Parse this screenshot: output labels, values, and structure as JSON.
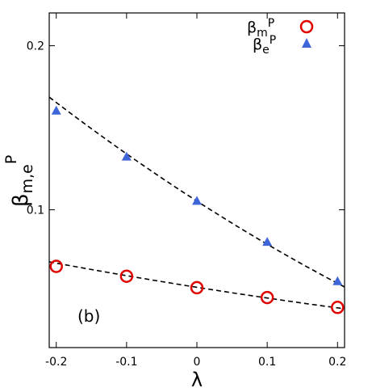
{
  "chart_data": {
    "type": "scatter",
    "xlabel": "λ",
    "ylabel_main": "β",
    "ylabel_sub": "m,e",
    "ylabel_sup": "P",
    "xlim": [
      -0.21,
      0.21
    ],
    "ylim": [
      0.016,
      0.22
    ],
    "xticks": [
      -0.2,
      -0.1,
      0,
      0.1,
      0.2
    ],
    "xtick_labels": [
      "-0.2",
      "-0.1",
      "0",
      "0.1",
      "0.2"
    ],
    "yticks": [
      0.1,
      0.2
    ],
    "ytick_labels": [
      "0.1",
      "0.2"
    ],
    "annotation": "(b)",
    "legend_position": "top-right",
    "series": [
      {
        "legend_main": "β",
        "legend_sub": "m",
        "legend_sup": "P",
        "marker": "circle",
        "color": "#e00000",
        "x": [
          -0.2,
          -0.1,
          0,
          0.1,
          0.2
        ],
        "y": [
          0.0655,
          0.0595,
          0.0525,
          0.0465,
          0.0405
        ],
        "fit_y": [
          0.0675,
          0.0598,
          0.0528,
          0.0462,
          0.0402
        ]
      },
      {
        "legend_main": "β",
        "legend_sub": "e",
        "legend_sup": "P",
        "marker": "triangle",
        "color": "#3f66d9",
        "x": [
          -0.2,
          -0.1,
          0,
          0.1,
          0.2
        ],
        "y": [
          0.1605,
          0.1325,
          0.1055,
          0.0805,
          0.0565
        ],
        "fit_y": [
          0.1655,
          0.134,
          0.105,
          0.0795,
          0.055
        ]
      }
    ]
  }
}
